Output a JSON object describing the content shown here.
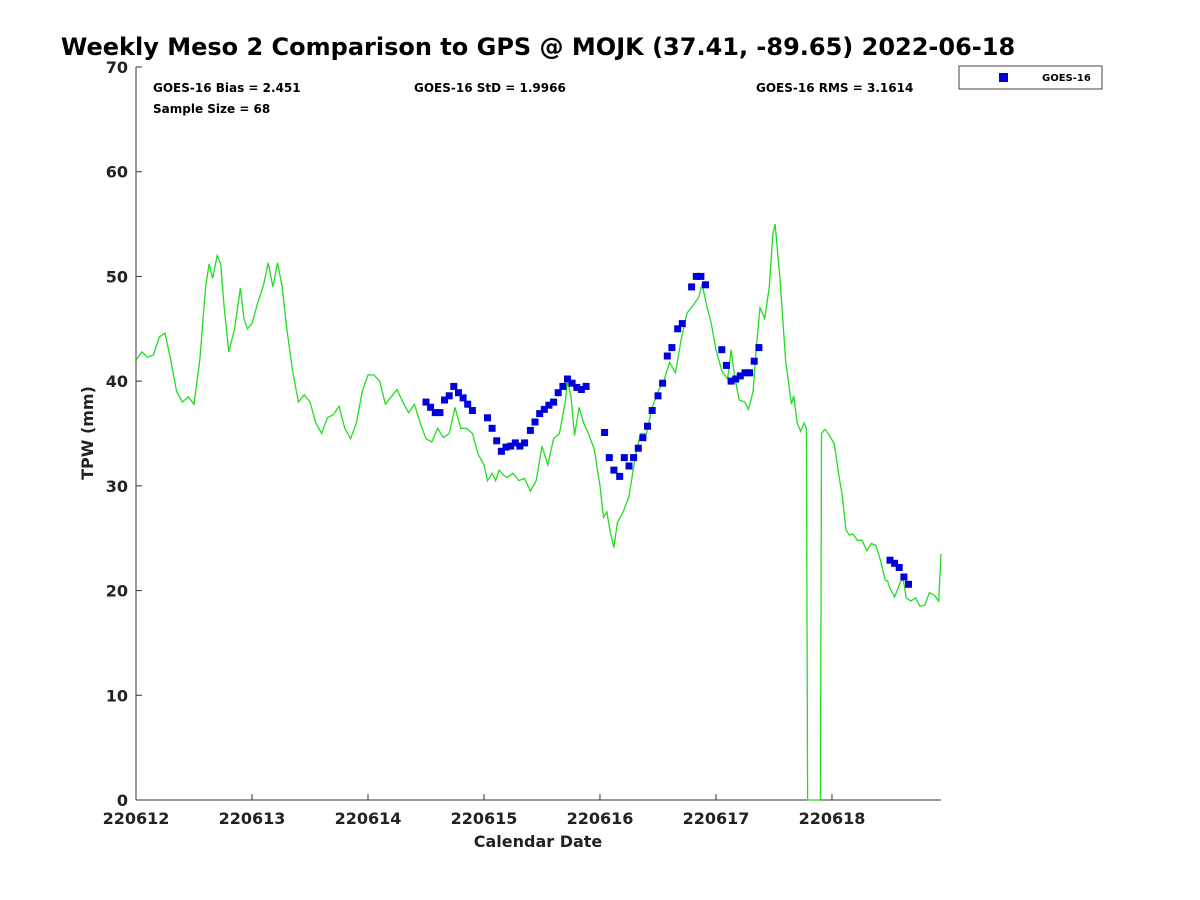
{
  "chart_data": {
    "type": "scatter",
    "title": "Weekly Meso 2 Comparison to GPS @ MOJK (37.41, -89.65) 2022-06-18",
    "xlabel": "Calendar Date",
    "ylabel": "TPW (mm)",
    "ylim": [
      0,
      70
    ],
    "xlim": [
      0,
      6.94
    ],
    "x_tick_labels": [
      "220612",
      "220613",
      "220614",
      "220615",
      "220616",
      "220617",
      "220618"
    ],
    "x_tick_values": [
      0,
      1,
      2,
      3,
      4,
      5,
      6
    ],
    "y_tick_values": [
      0,
      10,
      20,
      30,
      40,
      50,
      60,
      70
    ],
    "grid": false,
    "legend_position": "top-right (outside plot)",
    "stats": {
      "bias": "GOES-16 Bias = 2.451",
      "std": "GOES-16 StD = 1.9966",
      "rms": "GOES-16 RMS = 3.1614",
      "sample": "Sample Size = 68"
    },
    "series": [
      {
        "name": "GOES-16",
        "marker": "square",
        "color": "#0000dd",
        "points": [
          [
            2.5,
            38.0
          ],
          [
            2.54,
            37.5
          ],
          [
            2.58,
            37.0
          ],
          [
            2.62,
            37.0
          ],
          [
            2.66,
            38.2
          ],
          [
            2.7,
            38.6
          ],
          [
            2.74,
            39.5
          ],
          [
            2.78,
            38.9
          ],
          [
            2.82,
            38.4
          ],
          [
            2.86,
            37.8
          ],
          [
            2.9,
            37.2
          ],
          [
            3.03,
            36.5
          ],
          [
            3.07,
            35.5
          ],
          [
            3.11,
            34.3
          ],
          [
            3.15,
            33.3
          ],
          [
            3.19,
            33.7
          ],
          [
            3.23,
            33.8
          ],
          [
            3.27,
            34.1
          ],
          [
            3.31,
            33.8
          ],
          [
            3.35,
            34.1
          ],
          [
            3.4,
            35.3
          ],
          [
            3.44,
            36.1
          ],
          [
            3.48,
            36.9
          ],
          [
            3.52,
            37.3
          ],
          [
            3.56,
            37.7
          ],
          [
            3.6,
            38.0
          ],
          [
            3.64,
            38.9
          ],
          [
            3.68,
            39.5
          ],
          [
            3.72,
            40.2
          ],
          [
            3.76,
            39.8
          ],
          [
            3.8,
            39.4
          ],
          [
            3.84,
            39.2
          ],
          [
            3.88,
            39.5
          ],
          [
            4.04,
            35.1
          ],
          [
            4.08,
            32.7
          ],
          [
            4.12,
            31.5
          ],
          [
            4.17,
            30.9
          ],
          [
            4.21,
            32.7
          ],
          [
            4.25,
            31.9
          ],
          [
            4.29,
            32.7
          ],
          [
            4.33,
            33.6
          ],
          [
            4.37,
            34.6
          ],
          [
            4.41,
            35.7
          ],
          [
            4.45,
            37.2
          ],
          [
            4.5,
            38.6
          ],
          [
            4.54,
            39.8
          ],
          [
            4.58,
            42.4
          ],
          [
            4.62,
            43.2
          ],
          [
            4.67,
            45.0
          ],
          [
            4.71,
            45.5
          ],
          [
            4.79,
            49.0
          ],
          [
            4.83,
            50.0
          ],
          [
            4.87,
            50.0
          ],
          [
            4.91,
            49.2
          ],
          [
            5.05,
            43.0
          ],
          [
            5.09,
            41.5
          ],
          [
            5.13,
            40.0
          ],
          [
            5.17,
            40.2
          ],
          [
            5.21,
            40.5
          ],
          [
            5.25,
            40.8
          ],
          [
            5.29,
            40.8
          ],
          [
            5.33,
            41.9
          ],
          [
            5.37,
            43.2
          ],
          [
            6.5,
            22.9
          ],
          [
            6.54,
            22.6
          ],
          [
            6.58,
            22.2
          ],
          [
            6.62,
            21.3
          ],
          [
            6.66,
            20.6
          ]
        ]
      },
      {
        "name": "",
        "type": "line",
        "color": "#22dd22",
        "points": [
          [
            0,
            42
          ],
          [
            0.05,
            42.8
          ],
          [
            0.1,
            42.3
          ],
          [
            0.15,
            42.5
          ],
          [
            0.2,
            44.2
          ],
          [
            0.25,
            44.6
          ],
          [
            0.3,
            42
          ],
          [
            0.35,
            39
          ],
          [
            0.4,
            38
          ],
          [
            0.45,
            38.5
          ],
          [
            0.5,
            37.8
          ],
          [
            0.55,
            42
          ],
          [
            0.6,
            49
          ],
          [
            0.63,
            51.2
          ],
          [
            0.66,
            49.8
          ],
          [
            0.7,
            52
          ],
          [
            0.73,
            51.2
          ],
          [
            0.76,
            47
          ],
          [
            0.8,
            42.8
          ],
          [
            0.85,
            45
          ],
          [
            0.9,
            48.9
          ],
          [
            0.93,
            46
          ],
          [
            0.96,
            45
          ],
          [
            1.0,
            45.5
          ],
          [
            1.05,
            47.5
          ],
          [
            1.1,
            49.2
          ],
          [
            1.14,
            51.3
          ],
          [
            1.18,
            49
          ],
          [
            1.22,
            51.3
          ],
          [
            1.26,
            49
          ],
          [
            1.3,
            45
          ],
          [
            1.35,
            41
          ],
          [
            1.4,
            38
          ],
          [
            1.45,
            38.7
          ],
          [
            1.5,
            38
          ],
          [
            1.55,
            36
          ],
          [
            1.6,
            35
          ],
          [
            1.65,
            36.5
          ],
          [
            1.7,
            36.8
          ],
          [
            1.75,
            37.6
          ],
          [
            1.8,
            35.5
          ],
          [
            1.85,
            34.5
          ],
          [
            1.9,
            36
          ],
          [
            1.95,
            39
          ],
          [
            2.0,
            40.6
          ],
          [
            2.05,
            40.6
          ],
          [
            2.1,
            40
          ],
          [
            2.15,
            37.8
          ],
          [
            2.2,
            38.5
          ],
          [
            2.25,
            39.2
          ],
          [
            2.3,
            38
          ],
          [
            2.35,
            37
          ],
          [
            2.4,
            37.8
          ],
          [
            2.45,
            36
          ],
          [
            2.5,
            34.5
          ],
          [
            2.55,
            34.2
          ],
          [
            2.6,
            35.5
          ],
          [
            2.65,
            34.6
          ],
          [
            2.7,
            35
          ],
          [
            2.75,
            37.5
          ],
          [
            2.8,
            35.5
          ],
          [
            2.85,
            35.5
          ],
          [
            2.9,
            35
          ],
          [
            2.95,
            33
          ],
          [
            3.0,
            32
          ],
          [
            3.03,
            30.5
          ],
          [
            3.07,
            31.2
          ],
          [
            3.1,
            30.5
          ],
          [
            3.13,
            31.5
          ],
          [
            3.17,
            31
          ],
          [
            3.2,
            30.8
          ],
          [
            3.25,
            31.2
          ],
          [
            3.3,
            30.5
          ],
          [
            3.35,
            30.7
          ],
          [
            3.4,
            29.5
          ],
          [
            3.45,
            30.5
          ],
          [
            3.5,
            33.8
          ],
          [
            3.55,
            32
          ],
          [
            3.6,
            34.5
          ],
          [
            3.65,
            35
          ],
          [
            3.7,
            38
          ],
          [
            3.72,
            40
          ],
          [
            3.75,
            38.5
          ],
          [
            3.78,
            34.8
          ],
          [
            3.82,
            37.5
          ],
          [
            3.86,
            36
          ],
          [
            3.9,
            35
          ],
          [
            3.95,
            33.5
          ],
          [
            4.0,
            30
          ],
          [
            4.03,
            27
          ],
          [
            4.06,
            27.5
          ],
          [
            4.09,
            25.5
          ],
          [
            4.12,
            24.1
          ],
          [
            4.15,
            26.5
          ],
          [
            4.2,
            27.5
          ],
          [
            4.25,
            29
          ],
          [
            4.3,
            32.5
          ],
          [
            4.35,
            35
          ],
          [
            4.4,
            35
          ],
          [
            4.45,
            37.5
          ],
          [
            4.5,
            39
          ],
          [
            4.55,
            40
          ],
          [
            4.6,
            41.8
          ],
          [
            4.65,
            40.8
          ],
          [
            4.7,
            44
          ],
          [
            4.75,
            46.5
          ],
          [
            4.8,
            47.2
          ],
          [
            4.85,
            48
          ],
          [
            4.88,
            49.3
          ],
          [
            4.92,
            47.2
          ],
          [
            4.96,
            45.5
          ],
          [
            5.0,
            43
          ],
          [
            5.05,
            41
          ],
          [
            5.1,
            40.2
          ],
          [
            5.13,
            43
          ],
          [
            5.16,
            40.5
          ],
          [
            5.2,
            38.2
          ],
          [
            5.25,
            38
          ],
          [
            5.28,
            37.3
          ],
          [
            5.32,
            39
          ],
          [
            5.35,
            43.5
          ],
          [
            5.38,
            47
          ],
          [
            5.42,
            46
          ],
          [
            5.46,
            49
          ],
          [
            5.49,
            54
          ],
          [
            5.51,
            55
          ],
          [
            5.55,
            50
          ],
          [
            5.6,
            42
          ],
          [
            5.65,
            37.8
          ],
          [
            5.67,
            38.6
          ],
          [
            5.7,
            36
          ],
          [
            5.73,
            35.2
          ],
          [
            5.76,
            36
          ],
          [
            5.78,
            35.5
          ],
          [
            5.79,
            0
          ],
          [
            5.9,
            0
          ],
          [
            5.91,
            35
          ],
          [
            5.94,
            35.4
          ],
          [
            5.98,
            34.8
          ],
          [
            6.02,
            34
          ],
          [
            6.06,
            31
          ],
          [
            6.09,
            29
          ],
          [
            6.12,
            25.8
          ],
          [
            6.15,
            25.3
          ],
          [
            6.18,
            25.4
          ],
          [
            6.22,
            24.8
          ],
          [
            6.26,
            24.8
          ],
          [
            6.3,
            23.8
          ],
          [
            6.34,
            24.5
          ],
          [
            6.38,
            24.3
          ],
          [
            6.42,
            22.8
          ],
          [
            6.46,
            21
          ],
          [
            6.48,
            20.9
          ],
          [
            6.5,
            20.2
          ],
          [
            6.54,
            19.4
          ],
          [
            6.58,
            20.5
          ],
          [
            6.61,
            21.4
          ],
          [
            6.64,
            19.3
          ],
          [
            6.68,
            19
          ],
          [
            6.72,
            19.3
          ],
          [
            6.76,
            18.5
          ],
          [
            6.8,
            18.6
          ],
          [
            6.84,
            19.8
          ],
          [
            6.88,
            19.6
          ],
          [
            6.92,
            19
          ],
          [
            6.94,
            23.5
          ]
        ]
      }
    ]
  }
}
